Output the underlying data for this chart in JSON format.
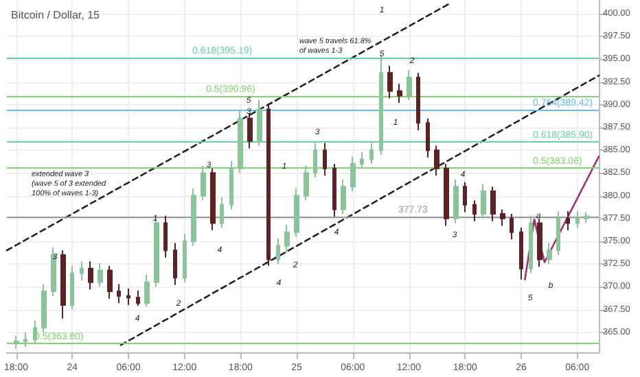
{
  "chart_data": {
    "type": "candlestick",
    "title": "Bitcoin / Dollar, 15",
    "xlim": [
      "--11-23T17:00",
      "--11-26T08:18"
    ],
    "ylim": [
      362.8,
      401.5
    ],
    "xticks": [
      {
        "value": "--11-23T18:00",
        "label": "18:00"
      },
      {
        "value": "--11-24T00:00",
        "label": "24"
      },
      {
        "value": "--11-24T06:00",
        "label": "06:00"
      },
      {
        "value": "--11-24T12:00",
        "label": "12:00"
      },
      {
        "value": "--11-24T18:00",
        "label": "18:00"
      },
      {
        "value": "--11-25T00:00",
        "label": "25"
      },
      {
        "value": "--11-25T06:00",
        "label": "06:00"
      },
      {
        "value": "--11-25T12:00",
        "label": "12:00"
      },
      {
        "value": "--11-25T18:00",
        "label": "18:00"
      },
      {
        "value": "--11-26T00:00",
        "label": "26"
      },
      {
        "value": "--11-26T06:00",
        "label": "06:00"
      }
    ],
    "yticks": [
      {
        "value": 365,
        "label": "365.00"
      },
      {
        "value": 367.5,
        "label": "367.50"
      },
      {
        "value": 370,
        "label": "370.00"
      },
      {
        "value": 372.5,
        "label": "372.50"
      },
      {
        "value": 375,
        "label": "375.00"
      },
      {
        "value": 377.5,
        "label": "377.50"
      },
      {
        "value": 380,
        "label": "380.00"
      },
      {
        "value": 382.5,
        "label": "382.50"
      },
      {
        "value": 385,
        "label": "385.00"
      },
      {
        "value": 387.5,
        "label": "387.50"
      },
      {
        "value": 390,
        "label": "390.00"
      },
      {
        "value": 392.5,
        "label": "392.50"
      },
      {
        "value": 395,
        "label": "395.00"
      },
      {
        "value": 397.5,
        "label": "397.50"
      },
      {
        "value": 400,
        "label": "400.00"
      }
    ],
    "grid": true,
    "series": [
      {
        "type": "candlestick",
        "x": [
          "--11-23T18:00",
          "--11-23T19:00",
          "--11-23T20:00",
          "--11-23T21:00",
          "--11-23T22:00",
          "--11-23T23:00",
          "--11-24T00:00",
          "--11-24T01:00",
          "--11-24T02:00",
          "--11-24T03:00",
          "--11-24T04:00",
          "--11-24T05:00",
          "--11-24T06:00",
          "--11-24T07:00",
          "--11-24T08:00",
          "--11-24T09:00",
          "--11-24T10:00",
          "--11-24T11:00",
          "--11-24T12:00",
          "--11-24T13:00",
          "--11-24T14:00",
          "--11-24T15:00",
          "--11-24T16:00",
          "--11-24T17:00",
          "--11-24T18:00",
          "--11-24T19:00",
          "--11-24T20:00",
          "--11-24T21:00",
          "--11-24T22:00",
          "--11-24T23:00",
          "--11-25T00:00",
          "--11-25T01:00",
          "--11-25T02:00",
          "--11-25T03:00",
          "--11-25T04:00",
          "--11-25T05:00",
          "--11-25T06:00",
          "--11-25T07:00",
          "--11-25T08:00",
          "--11-25T09:00",
          "--11-25T10:00",
          "--11-25T11:00",
          "--11-25T12:00",
          "--11-25T13:00",
          "--11-25T14:00",
          "--11-25T15:00",
          "--11-25T16:00",
          "--11-25T17:00",
          "--11-25T18:00",
          "--11-25T19:00",
          "--11-25T20:00",
          "--11-25T21:00",
          "--11-25T22:00",
          "--11-25T23:00",
          "--11-26T00:00",
          "--11-26T01:00",
          "--11-26T02:00",
          "--11-26T03:00",
          "--11-26T04:00",
          "--11-26T05:00",
          "--11-26T06:00",
          "--11-26T07:00"
        ],
        "ohlc": [
          [
            363.8,
            364.6,
            363.2,
            364.0
          ],
          [
            364.0,
            365.0,
            363.4,
            364.2
          ],
          [
            364.2,
            366.3,
            363.8,
            365.5
          ],
          [
            365.5,
            370.3,
            365.0,
            369.5
          ],
          [
            369.5,
            374.3,
            369.0,
            373.5
          ],
          [
            373.5,
            374.0,
            366.5,
            368.0
          ],
          [
            368.0,
            372.3,
            367.5,
            371.5
          ],
          [
            371.5,
            372.8,
            370.7,
            372.0
          ],
          [
            372.0,
            372.8,
            369.7,
            370.5
          ],
          [
            370.5,
            372.6,
            370.0,
            371.8
          ],
          [
            371.8,
            372.3,
            368.7,
            369.5
          ],
          [
            369.5,
            370.3,
            368.2,
            369.0
          ],
          [
            369.0,
            369.8,
            368.0,
            368.8
          ],
          [
            368.8,
            369.6,
            367.9,
            368.2
          ],
          [
            368.2,
            371.3,
            367.8,
            370.5
          ],
          [
            370.5,
            377.8,
            370.0,
            377.0
          ],
          [
            377.0,
            377.8,
            373.2,
            374.0
          ],
          [
            374.0,
            374.8,
            370.2,
            371.0
          ],
          [
            371.0,
            375.8,
            370.5,
            375.0
          ],
          [
            375.0,
            380.8,
            374.5,
            380.0
          ],
          [
            380.0,
            383.3,
            379.5,
            382.5
          ],
          [
            382.5,
            383.0,
            376.2,
            377.0
          ],
          [
            377.0,
            379.8,
            376.5,
            379.0
          ],
          [
            379.0,
            383.8,
            378.5,
            383.0
          ],
          [
            383.0,
            389.3,
            382.5,
            388.5
          ],
          [
            388.5,
            389.0,
            385.2,
            386.0
          ],
          [
            386.0,
            390.5,
            385.5,
            389.5
          ],
          [
            389.5,
            390.0,
            372.3,
            373.0
          ],
          [
            373.0,
            375.3,
            372.5,
            374.5
          ],
          [
            374.5,
            376.8,
            373.7,
            376.0
          ],
          [
            376.0,
            380.8,
            375.5,
            380.0
          ],
          [
            380.0,
            383.3,
            379.5,
            382.5
          ],
          [
            382.5,
            385.8,
            382.0,
            385.0
          ],
          [
            385.0,
            385.8,
            382.2,
            383.0
          ],
          [
            383.0,
            383.5,
            377.7,
            378.5
          ],
          [
            378.5,
            381.8,
            378.0,
            381.0
          ],
          [
            381.0,
            384.3,
            380.5,
            383.5
          ],
          [
            383.5,
            384.8,
            383.0,
            384.0
          ],
          [
            384.0,
            385.8,
            383.5,
            385.0
          ],
          [
            385.0,
            395.5,
            384.5,
            393.5
          ],
          [
            393.5,
            394.3,
            390.7,
            391.5
          ],
          [
            391.5,
            392.3,
            390.2,
            391.0
          ],
          [
            391.0,
            393.8,
            390.5,
            393.0
          ],
          [
            393.0,
            393.5,
            387.2,
            388.0
          ],
          [
            388.0,
            388.5,
            384.2,
            385.0
          ],
          [
            385.0,
            385.5,
            382.2,
            383.0
          ],
          [
            383.0,
            383.5,
            376.7,
            377.5
          ],
          [
            377.5,
            381.8,
            377.0,
            381.0
          ],
          [
            381.0,
            381.5,
            378.2,
            379.0
          ],
          [
            379.0,
            379.5,
            377.2,
            378.0
          ],
          [
            378.0,
            381.3,
            377.5,
            380.5
          ],
          [
            380.5,
            381.0,
            377.2,
            378.0
          ],
          [
            378.0,
            378.5,
            376.7,
            377.5
          ],
          [
            377.5,
            378.0,
            375.2,
            376.0
          ],
          [
            376.0,
            376.5,
            370.8,
            372.0
          ],
          [
            372.0,
            377.8,
            371.5,
            377.0
          ],
          [
            377.0,
            377.5,
            372.2,
            373.0
          ],
          [
            373.0,
            374.8,
            372.5,
            374.0
          ],
          [
            374.0,
            378.3,
            373.5,
            377.5
          ],
          [
            377.5,
            378.3,
            376.2,
            377.0
          ],
          [
            377.0,
            378.3,
            376.5,
            377.5
          ],
          [
            377.5,
            378.2,
            377.0,
            377.73
          ]
        ],
        "colors": [
          "#8bc49a",
          "#8bc49a",
          "#8bc49a",
          "#8bc49a",
          "#8bc49a",
          "#5a2222",
          "#8bc49a",
          "#8bc49a",
          "#5a2222",
          "#8bc49a",
          "#5a2222",
          "#5a2222",
          "#5a2222",
          "#5a2222",
          "#8bc49a",
          "#8bc49a",
          "#5a2222",
          "#5a2222",
          "#8bc49a",
          "#8bc49a",
          "#8bc49a",
          "#5a2222",
          "#8bc49a",
          "#8bc49a",
          "#8bc49a",
          "#5a2222",
          "#8bc49a",
          "#5a2222",
          "#8bc49a",
          "#8bc49a",
          "#8bc49a",
          "#8bc49a",
          "#8bc49a",
          "#5a2222",
          "#5a2222",
          "#8bc49a",
          "#8bc49a",
          "#8bc49a",
          "#8bc49a",
          "#8bc49a",
          "#5a2222",
          "#5a2222",
          "#8bc49a",
          "#5a2222",
          "#5a2222",
          "#5a2222",
          "#5a2222",
          "#8bc49a",
          "#5a2222",
          "#5a2222",
          "#8bc49a",
          "#5a2222",
          "#5a2222",
          "#5a2222",
          "#5a2222",
          "#8bc49a",
          "#5a2222",
          "#8bc49a",
          "#8bc49a",
          "#5a2222",
          "#8bc49a",
          "#8bc49a"
        ]
      },
      {
        "type": "line",
        "x": [
          "--11-23T17:00",
          "--11-25T16:30"
        ],
        "values": [
          374.0,
          401.2
        ],
        "color": "#222222",
        "line_style": "dashed"
      },
      {
        "type": "line",
        "x": [
          "--11-24T05:12",
          "--11-26T08:18"
        ],
        "values": [
          363.6,
          393.2
        ],
        "color": "#222222",
        "line_style": "dashed"
      },
      {
        "type": "line",
        "x": [
          "--11-26T00:24",
          "--11-26T01:24",
          "--11-26T02:30",
          "--11-26T08:18"
        ],
        "values": [
          370.8,
          377.4,
          372.7,
          384.3
        ],
        "color": "#a0306a",
        "line_style": "solid"
      }
    ],
    "ref_lines": [
      {
        "axis": "y",
        "value": 395.19,
        "label": "0.618(395.19)",
        "color": "#63d2a0"
      },
      {
        "axis": "y",
        "value": 390.96,
        "label": "0.5(390.96)",
        "color": "#7cd46c"
      },
      {
        "axis": "y",
        "value": 389.42,
        "label": "0.764(389.42)",
        "color": "#6fb6e0"
      },
      {
        "axis": "y",
        "value": 385.9,
        "label": "0.618(385.90)",
        "color": "#63d2a0"
      },
      {
        "axis": "y",
        "value": 383.06,
        "label": "0.5(383.06)",
        "color": "#7cd46c"
      },
      {
        "axis": "y",
        "value": 363.8,
        "label": "0.5(363.80)",
        "color": "#7cd46c"
      },
      {
        "axis": "y",
        "value": 377.73,
        "label": "377.73",
        "color": "#999999"
      }
    ],
    "annotations": [
      "extended wave 3\n(wave 5 of 3 extended\n100% of waves 1-3)",
      "wave 5 travels 61.8%\nof waves 1-3",
      "3",
      "4",
      "1",
      "2",
      "3",
      "4",
      "5",
      "3",
      "1",
      "4",
      "2",
      "3",
      "4",
      "1",
      "5",
      "1",
      "2",
      "3",
      "4",
      "5",
      "a",
      "b"
    ]
  }
}
